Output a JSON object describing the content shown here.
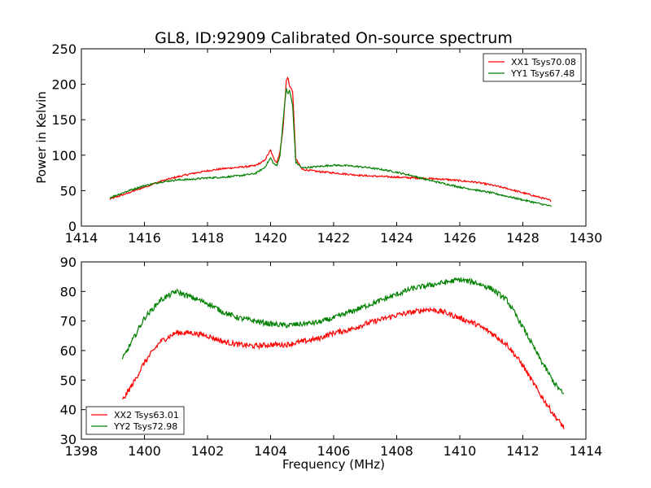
{
  "figure": {
    "title": "GL8, ID:92909 Calibrated On-source spectrum"
  },
  "chart_data": [
    {
      "type": "line",
      "title": "GL8, ID:92909 Calibrated On-source spectrum",
      "xlabel": "",
      "ylabel": "Power in Kelvin",
      "xlim": [
        1414,
        1430
      ],
      "ylim": [
        0,
        250
      ],
      "xticks": [
        "1414",
        "1416",
        "1418",
        "1420",
        "1422",
        "1424",
        "1426",
        "1428",
        "1430"
      ],
      "yticks": [
        "0",
        "50",
        "100",
        "150",
        "200",
        "250"
      ],
      "legend_position": "top-right",
      "grid": false,
      "series": [
        {
          "name": "XX1 Tsys70.08",
          "color": "#ff0000",
          "x": [
            1414.9,
            1415.5,
            1416,
            1416.5,
            1417,
            1417.5,
            1418,
            1418.5,
            1419,
            1419.5,
            1419.8,
            1420.0,
            1420.1,
            1420.2,
            1420.3,
            1420.4,
            1420.5,
            1420.55,
            1420.6,
            1420.7,
            1420.8,
            1421,
            1421.5,
            1422,
            1422.5,
            1423,
            1423.5,
            1424,
            1424.5,
            1425,
            1425.5,
            1426,
            1426.5,
            1427,
            1427.5,
            1428,
            1428.5,
            1428.9
          ],
          "values": [
            38,
            47,
            55,
            63,
            69,
            74,
            78,
            81,
            83,
            85,
            92,
            107,
            95,
            90,
            105,
            140,
            205,
            210,
            198,
            190,
            95,
            80,
            77,
            75,
            73,
            71,
            70,
            69,
            68,
            67,
            66,
            64,
            62,
            58,
            53,
            47,
            41,
            36
          ]
        },
        {
          "name": "YY1 Tsys67.48",
          "color": "#008000",
          "x": [
            1414.9,
            1415.5,
            1416,
            1416.5,
            1417,
            1417.5,
            1418,
            1418.5,
            1419,
            1419.5,
            1419.8,
            1420.0,
            1420.1,
            1420.2,
            1420.3,
            1420.4,
            1420.5,
            1420.55,
            1420.6,
            1420.7,
            1420.8,
            1421,
            1421.5,
            1422,
            1422.5,
            1423,
            1423.5,
            1424,
            1424.5,
            1425,
            1425.5,
            1426,
            1426.5,
            1427,
            1427.5,
            1428,
            1428.5,
            1428.9
          ],
          "values": [
            40,
            50,
            57,
            62,
            65,
            66,
            68,
            69,
            71,
            74,
            82,
            96,
            88,
            85,
            100,
            150,
            195,
            185,
            192,
            170,
            90,
            82,
            84,
            86,
            85,
            83,
            80,
            76,
            71,
            65,
            60,
            55,
            51,
            47,
            42,
            37,
            32,
            28
          ]
        }
      ]
    },
    {
      "type": "line",
      "title": "",
      "xlabel": "Frequency (MHz)",
      "ylabel": "",
      "xlim": [
        1398,
        1414
      ],
      "ylim": [
        30,
        90
      ],
      "xticks": [
        "1398",
        "1400",
        "1402",
        "1404",
        "1406",
        "1408",
        "1410",
        "1412",
        "1414"
      ],
      "yticks": [
        "30",
        "40",
        "50",
        "60",
        "70",
        "80",
        "90"
      ],
      "legend_position": "bottom-left",
      "grid": false,
      "series": [
        {
          "name": "XX2 Tsys63.01",
          "color": "#ff0000",
          "x": [
            1399.3,
            1399.7,
            1400.0,
            1400.5,
            1401.0,
            1401.5,
            1402.0,
            1402.5,
            1403.0,
            1403.5,
            1404.0,
            1404.5,
            1405.0,
            1405.5,
            1406.0,
            1406.5,
            1407.0,
            1407.5,
            1408.0,
            1408.5,
            1409.0,
            1409.5,
            1410.0,
            1410.5,
            1411.0,
            1411.5,
            1412.0,
            1412.5,
            1413.0,
            1413.3
          ],
          "values": [
            43,
            50,
            56,
            63,
            66,
            66,
            65,
            63,
            62,
            61.5,
            62,
            62,
            63,
            64,
            66,
            67,
            69,
            70.5,
            72,
            73,
            74,
            73,
            71,
            69,
            66,
            62,
            55,
            46,
            38,
            34
          ]
        },
        {
          "name": "YY2 Tsys72.98",
          "color": "#008000",
          "x": [
            1399.3,
            1399.7,
            1400.0,
            1400.5,
            1401.0,
            1401.5,
            1402.0,
            1402.5,
            1403.0,
            1403.5,
            1404.0,
            1404.5,
            1405.0,
            1405.5,
            1406.0,
            1406.5,
            1407.0,
            1407.5,
            1408.0,
            1408.5,
            1409.0,
            1409.5,
            1410.0,
            1410.5,
            1411.0,
            1411.5,
            1412.0,
            1412.5,
            1413.0,
            1413.3
          ],
          "values": [
            57,
            65,
            71,
            77,
            80,
            78,
            76,
            73,
            71,
            70,
            69,
            68.5,
            69,
            69.5,
            71,
            73,
            75,
            77,
            79,
            81,
            82,
            83,
            84,
            83,
            81,
            77,
            68,
            58,
            49,
            45
          ]
        }
      ]
    }
  ]
}
